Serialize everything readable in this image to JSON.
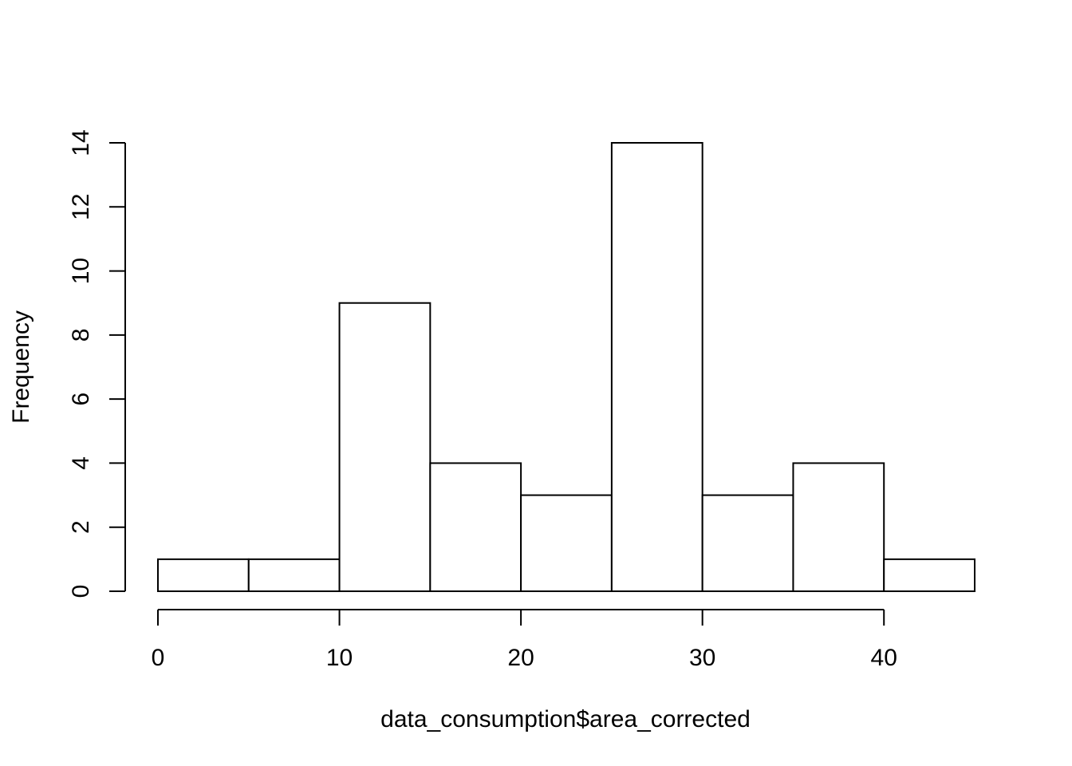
{
  "chart_data": {
    "type": "bar",
    "subtype": "histogram",
    "title": "",
    "xlabel": "data_consumption$area_corrected",
    "ylabel": "Frequency",
    "bin_edges": [
      0,
      5,
      10,
      15,
      20,
      25,
      30,
      35,
      40,
      45
    ],
    "values": [
      1,
      1,
      9,
      4,
      3,
      14,
      3,
      4,
      1
    ],
    "xlim": [
      0,
      45
    ],
    "ylim": [
      0,
      14
    ],
    "x_ticks": [
      0,
      10,
      20,
      30,
      40
    ],
    "x_tick_labels": [
      "0",
      "10",
      "20",
      "30",
      "40"
    ],
    "y_ticks": [
      0,
      2,
      4,
      6,
      8,
      10,
      12,
      14
    ],
    "y_tick_labels": [
      "0",
      "2",
      "4",
      "6",
      "8",
      "10",
      "12",
      "14"
    ],
    "grid": false,
    "legend": "none",
    "colors": {
      "bar_fill": "#ffffff",
      "bar_stroke": "#000000",
      "axis": "#000000",
      "background": "#ffffff"
    }
  }
}
